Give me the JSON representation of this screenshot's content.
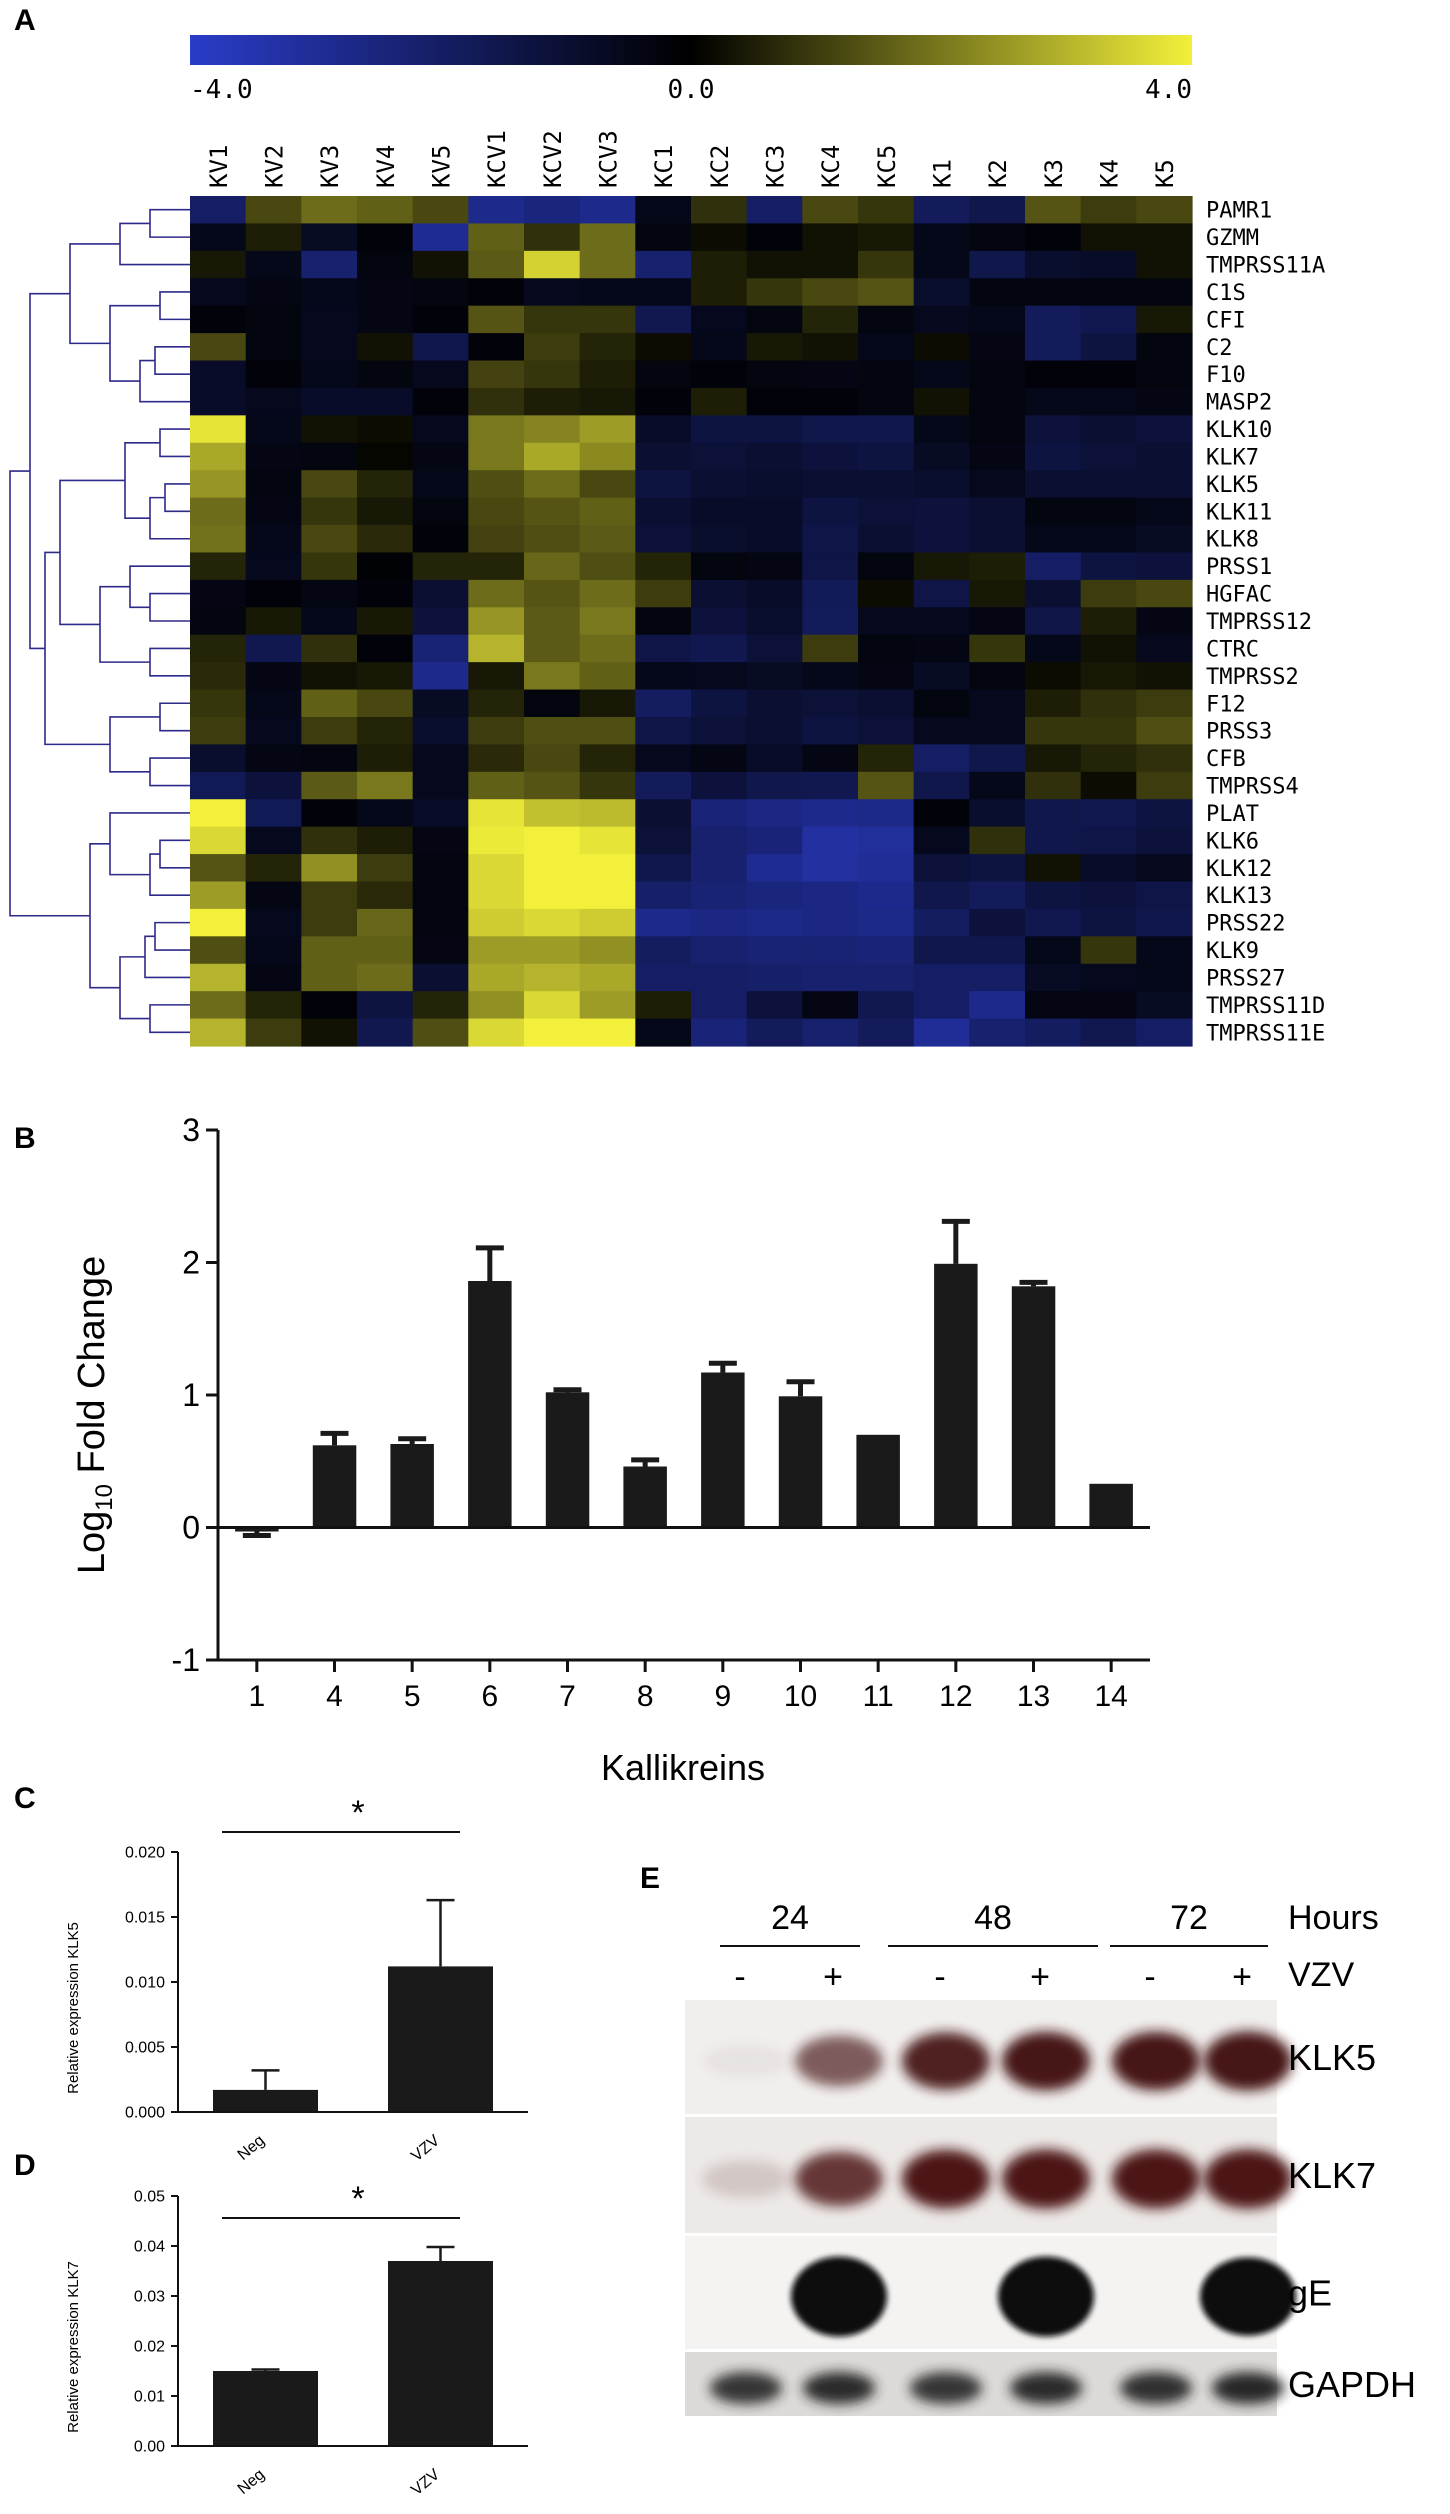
{
  "panels": {
    "a": "A",
    "b": "B",
    "c": "C",
    "d": "D",
    "e": "E"
  },
  "colors": {
    "low": "#2a3cc8",
    "mid": "#000000",
    "high": "#f2f03a",
    "bar": "#1a1a1a",
    "dendrogram": "#2e2a8a"
  },
  "chart_data": [
    {
      "type": "heatmap",
      "panel": "A",
      "colorbar": {
        "min": -4.0,
        "mid": 0.0,
        "max": 4.0,
        "labels": [
          "-4.0",
          "0.0",
          "4.0"
        ]
      },
      "columns": [
        "KV1",
        "KV2",
        "KV3",
        "KV4",
        "KV5",
        "KCV1",
        "KCV2",
        "KCV3",
        "KC1",
        "KC2",
        "KC3",
        "KC4",
        "KC5",
        "K1",
        "K2",
        "K3",
        "K4",
        "K5"
      ],
      "rows": [
        "PAMR1",
        "GZMM",
        "TMPRSS11A",
        "C1S",
        "CFI",
        "C2",
        "F10",
        "MASP2",
        "KLK10",
        "KLK7",
        "KLK5",
        "KLK11",
        "KLK8",
        "PRSS1",
        "HGFAC",
        "TMPRSS12",
        "CTRC",
        "TMPRSS2",
        "F12",
        "PRSS3",
        "CFB",
        "TMPRSS4",
        "PLAT",
        "KLK6",
        "KLK12",
        "KLK13",
        "PRSS22",
        "KLK9",
        "PRSS27",
        "TMPRSS11D",
        "TMPRSS11E"
      ],
      "values": [
        [
          -2.0,
          1.2,
          1.8,
          1.6,
          1.2,
          -2.8,
          -2.5,
          -2.8,
          -0.5,
          0.8,
          -2.0,
          1.2,
          0.9,
          -1.8,
          -1.5,
          1.4,
          1.0,
          1.2
        ],
        [
          -0.5,
          0.5,
          -0.7,
          -0.2,
          -2.9,
          1.6,
          0.8,
          1.8,
          -0.3,
          0.2,
          -0.2,
          0.3,
          0.4,
          -0.5,
          -0.3,
          -0.2,
          0.3,
          0.3
        ],
        [
          0.4,
          -0.5,
          -2.2,
          -0.3,
          0.3,
          1.5,
          3.5,
          1.8,
          -2.2,
          0.5,
          0.3,
          0.3,
          0.9,
          -0.5,
          -1.5,
          -0.9,
          -0.8,
          0.3
        ],
        [
          -0.6,
          -0.4,
          -0.5,
          -0.4,
          -0.3,
          -0.2,
          -0.6,
          -0.5,
          -0.5,
          0.5,
          0.9,
          1.2,
          1.4,
          -0.9,
          -0.3,
          -0.3,
          -0.3,
          -0.3
        ],
        [
          -0.2,
          -0.3,
          -0.6,
          -0.4,
          -0.2,
          1.4,
          0.9,
          0.9,
          -1.6,
          -0.6,
          -0.3,
          0.6,
          -0.3,
          -0.6,
          -0.5,
          -1.8,
          -1.6,
          0.4
        ],
        [
          1.2,
          -0.3,
          -0.6,
          0.3,
          -1.5,
          -0.2,
          1.0,
          0.6,
          0.2,
          -0.5,
          0.4,
          0.3,
          -0.5,
          0.2,
          -0.4,
          -1.8,
          -1.3,
          -0.3
        ],
        [
          -0.8,
          -0.2,
          -0.5,
          -0.3,
          -0.6,
          1.1,
          0.9,
          0.5,
          -0.3,
          -0.2,
          -0.3,
          -0.4,
          -0.3,
          -0.5,
          -0.3,
          -0.2,
          -0.2,
          -0.3
        ],
        [
          -0.8,
          -0.6,
          -0.8,
          -0.8,
          -0.2,
          0.8,
          0.5,
          0.4,
          -0.2,
          0.5,
          -0.2,
          -0.2,
          -0.3,
          0.3,
          -0.3,
          -0.5,
          -0.5,
          -0.4
        ],
        [
          3.8,
          -0.5,
          0.3,
          0.2,
          -0.6,
          2.0,
          2.2,
          2.6,
          -0.8,
          -1.3,
          -1.3,
          -1.5,
          -1.5,
          -0.5,
          -0.3,
          -1.2,
          -1.0,
          -1.2
        ],
        [
          2.8,
          -0.4,
          -0.3,
          0.1,
          -0.4,
          2.0,
          2.8,
          2.3,
          -1.0,
          -1.1,
          -1.0,
          -1.2,
          -1.3,
          -0.7,
          -0.4,
          -1.3,
          -1.1,
          -1.0
        ],
        [
          2.5,
          -0.3,
          1.2,
          0.6,
          -0.5,
          1.3,
          1.8,
          1.2,
          -1.3,
          -1.0,
          -0.9,
          -1.0,
          -1.0,
          -0.9,
          -0.6,
          -1.0,
          -1.0,
          -1.0
        ],
        [
          1.8,
          -0.4,
          0.9,
          0.4,
          -0.3,
          1.2,
          1.4,
          1.6,
          -1.0,
          -0.8,
          -0.8,
          -1.3,
          -1.1,
          -1.2,
          -1.0,
          -0.3,
          -0.3,
          -0.5
        ],
        [
          1.9,
          -0.5,
          1.2,
          0.7,
          -0.2,
          1.1,
          1.3,
          1.5,
          -1.1,
          -0.9,
          -0.8,
          -1.4,
          -1.0,
          -1.2,
          -1.0,
          -0.5,
          -0.5,
          -0.7
        ],
        [
          0.6,
          -0.6,
          0.9,
          -0.1,
          0.6,
          0.6,
          1.7,
          1.3,
          0.6,
          -0.3,
          -0.4,
          -1.4,
          -0.3,
          0.4,
          0.5,
          -2.0,
          -1.3,
          -1.2
        ],
        [
          -0.4,
          -0.2,
          -0.4,
          -0.2,
          -1.0,
          1.8,
          1.4,
          1.8,
          1.0,
          -1.0,
          -0.8,
          -1.7,
          0.2,
          -1.4,
          0.4,
          -1.0,
          1.0,
          1.2
        ],
        [
          -0.3,
          0.4,
          -0.5,
          0.4,
          -1.2,
          2.5,
          1.5,
          2.0,
          -0.3,
          -1.2,
          -0.9,
          -1.8,
          -0.6,
          -0.6,
          -0.4,
          -1.4,
          0.5,
          -0.4
        ],
        [
          0.6,
          -1.6,
          0.8,
          -0.2,
          -2.3,
          3.0,
          1.5,
          1.8,
          -1.4,
          -1.6,
          -1.1,
          1.0,
          -0.3,
          -0.4,
          0.9,
          -0.5,
          0.3,
          -0.6
        ],
        [
          0.7,
          -0.4,
          0.3,
          0.4,
          -2.8,
          0.4,
          2.0,
          1.6,
          -0.5,
          -0.6,
          -0.7,
          -0.5,
          -0.4,
          -0.7,
          -0.3,
          0.2,
          0.4,
          0.3
        ],
        [
          0.9,
          -0.5,
          1.6,
          1.2,
          -0.7,
          0.6,
          -0.3,
          0.4,
          -1.9,
          -1.3,
          -1.0,
          -1.1,
          -1.0,
          -0.3,
          -0.6,
          0.5,
          0.8,
          1.0
        ],
        [
          1.0,
          -0.6,
          1.0,
          0.6,
          -0.9,
          1.0,
          1.3,
          1.3,
          -1.4,
          -1.1,
          -1.0,
          -1.3,
          -1.1,
          -0.6,
          -0.6,
          0.9,
          0.9,
          1.3
        ],
        [
          -0.9,
          -0.4,
          -0.3,
          0.5,
          -0.6,
          0.7,
          1.2,
          0.6,
          -0.6,
          -0.4,
          -0.8,
          -0.4,
          0.6,
          -2.0,
          -1.5,
          0.4,
          0.6,
          0.8
        ],
        [
          -1.7,
          -1.2,
          1.5,
          2.0,
          -0.6,
          1.6,
          1.4,
          0.9,
          -1.8,
          -1.2,
          -1.5,
          -1.6,
          1.4,
          -1.5,
          -0.5,
          0.8,
          0.2,
          1.0
        ],
        [
          4.0,
          -1.7,
          -0.2,
          -0.5,
          -0.8,
          3.8,
          3.2,
          3.1,
          -1.0,
          -2.4,
          -2.6,
          -2.8,
          -2.7,
          -0.2,
          -0.9,
          -1.5,
          -1.6,
          -1.3
        ],
        [
          3.6,
          -0.6,
          0.8,
          0.5,
          -0.4,
          3.9,
          4.0,
          3.8,
          -1.1,
          -2.2,
          -2.4,
          -3.2,
          -3.1,
          -0.6,
          0.8,
          -1.5,
          -1.4,
          -1.2
        ],
        [
          1.4,
          0.6,
          2.4,
          1.0,
          -0.3,
          3.6,
          4.0,
          4.0,
          -1.5,
          -2.2,
          -2.9,
          -3.2,
          -3.0,
          -1.1,
          -1.3,
          0.3,
          -0.8,
          -0.6
        ],
        [
          2.6,
          -0.4,
          1.0,
          0.7,
          -0.3,
          3.6,
          4.0,
          4.0,
          -2.1,
          -2.3,
          -2.5,
          -2.6,
          -2.8,
          -1.5,
          -1.8,
          -1.3,
          -1.2,
          -1.4
        ],
        [
          4.0,
          -0.6,
          1.0,
          1.7,
          -0.3,
          3.4,
          3.6,
          3.4,
          -2.8,
          -2.6,
          -2.7,
          -2.6,
          -2.7,
          -1.9,
          -1.2,
          -1.6,
          -1.3,
          -1.5
        ],
        [
          1.3,
          -0.5,
          1.6,
          1.6,
          -0.4,
          2.6,
          2.6,
          2.4,
          -1.9,
          -2.2,
          -2.3,
          -2.3,
          -2.4,
          -1.5,
          -1.5,
          -0.5,
          0.9,
          -0.5
        ],
        [
          3.0,
          -0.4,
          1.6,
          1.8,
          -1.0,
          2.8,
          3.0,
          2.8,
          -2.0,
          -2.0,
          -2.1,
          -2.2,
          -2.2,
          -2.0,
          -2.0,
          -0.7,
          -0.6,
          -0.5
        ],
        [
          1.8,
          0.6,
          -0.2,
          -1.3,
          0.6,
          2.4,
          3.6,
          2.6,
          0.5,
          -2.0,
          -1.2,
          -0.4,
          -1.6,
          -2.0,
          -2.8,
          -0.4,
          -0.4,
          -0.7
        ],
        [
          3.0,
          1.0,
          0.3,
          -1.6,
          1.3,
          3.6,
          4.0,
          4.0,
          -0.5,
          -2.4,
          -1.8,
          -2.2,
          -1.8,
          -3.0,
          -2.2,
          -1.9,
          -1.6,
          -2.0
        ]
      ]
    },
    {
      "type": "bar",
      "panel": "B",
      "xlabel": "Kallikreins",
      "ylabel": "Log",
      "ylabel_sub": "10",
      "ylabel_rest": " Fold Change",
      "ylim": [
        -1,
        3
      ],
      "yticks": [
        "-1",
        "0",
        "1",
        "2",
        "3"
      ],
      "categories": [
        "1",
        "4",
        "5",
        "6",
        "7",
        "8",
        "9",
        "10",
        "11",
        "12",
        "13",
        "14"
      ],
      "values": [
        -0.03,
        0.62,
        0.63,
        1.86,
        1.02,
        0.46,
        1.17,
        0.99,
        0.7,
        1.99,
        1.82,
        0.33
      ],
      "errors": [
        0.03,
        0.09,
        0.04,
        0.25,
        0.02,
        0.05,
        0.07,
        0.11,
        0.0,
        0.32,
        0.03,
        0.0
      ]
    },
    {
      "type": "bar",
      "panel": "C",
      "ylabel": "Relative expression KLK5",
      "ylim": [
        0,
        0.02
      ],
      "yticks": [
        "0.000",
        "0.005",
        "0.010",
        "0.015",
        "0.020"
      ],
      "categories": [
        "Neg",
        "VZV"
      ],
      "values": [
        0.0017,
        0.0112
      ],
      "errors": [
        0.0015,
        0.0051
      ],
      "significance": "*"
    },
    {
      "type": "bar",
      "panel": "D",
      "ylabel": "Relative expression KLK7",
      "ylim": [
        0,
        0.05
      ],
      "yticks": [
        "0.00",
        "0.01",
        "0.02",
        "0.03",
        "0.04",
        "0.05"
      ],
      "categories": [
        "Neg",
        "VZV"
      ],
      "values": [
        0.015,
        0.037
      ],
      "errors": [
        0.0003,
        0.0028
      ],
      "significance": "*"
    }
  ],
  "blot": {
    "hours_label": "Hours",
    "vzv_label": "VZV",
    "timepoints": [
      "24",
      "48",
      "72"
    ],
    "treatments": [
      "-",
      "+",
      "-",
      "+",
      "-",
      "+"
    ],
    "bands": [
      "KLK5",
      "KLK7",
      "gE",
      "GAPDH"
    ],
    "intensities": {
      "KLK5": [
        0.05,
        0.65,
        0.9,
        0.95,
        0.95,
        0.97
      ],
      "KLK7": [
        0.15,
        0.8,
        0.95,
        0.97,
        0.97,
        0.97
      ],
      "gE": [
        0.0,
        1.0,
        0.0,
        1.0,
        0.0,
        0.95
      ],
      "GAPDH": [
        0.85,
        0.9,
        0.85,
        0.9,
        0.88,
        0.92
      ]
    }
  }
}
